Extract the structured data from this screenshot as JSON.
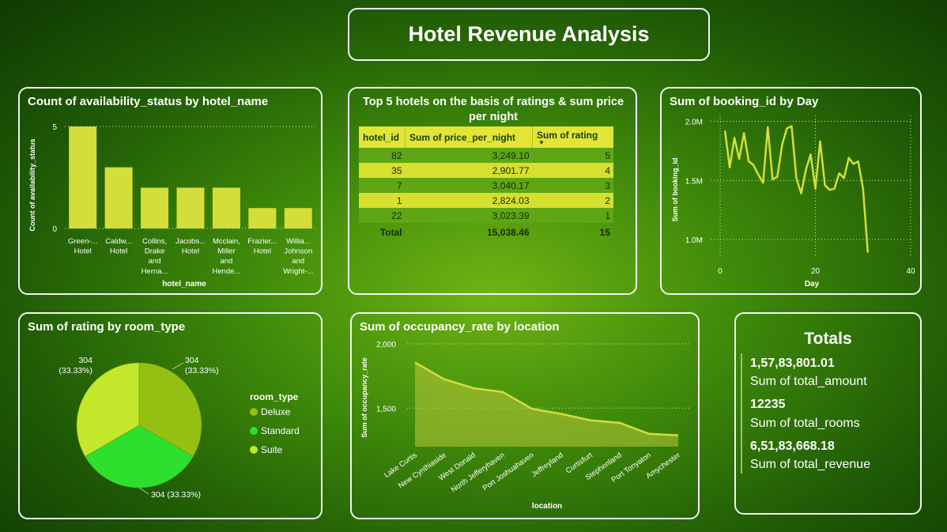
{
  "title": "Hotel Revenue Analysis",
  "panels": {
    "availability": {
      "title": "Count of availability_status by hotel_name"
    },
    "top5": {
      "title": "Top 5 hotels on the basis of ratings & sum price per night"
    },
    "booking": {
      "title": "Sum of booking_id by Day"
    },
    "rating": {
      "title": "Sum of rating by room_type"
    },
    "occupancy": {
      "title": "Sum of occupancy_rate by location"
    },
    "totals": {
      "title": "Totals"
    }
  },
  "chart_data": [
    {
      "type": "bar",
      "title": "Count of availability_status by hotel_name",
      "xlabel": "hotel_name",
      "ylabel": "Count of availability_status",
      "yticks": [
        "0",
        "5"
      ],
      "ylim": [
        0,
        5.7
      ],
      "categories": [
        [
          "Green-...",
          "Hotel"
        ],
        [
          "Caldw...",
          "Hotel"
        ],
        [
          "Collins,",
          "Drake",
          "and",
          "Herna..."
        ],
        [
          "Jacobs...",
          "Hotel"
        ],
        [
          "Mcclain,",
          "Miller",
          "and",
          "Hende..."
        ],
        [
          "Frazier...",
          "Hotel"
        ],
        [
          "Willia...",
          "Johnson",
          "and",
          "Wright-..."
        ]
      ],
      "values": [
        5,
        3,
        2,
        2,
        2,
        1,
        1
      ],
      "color": "#d4de3a"
    },
    {
      "type": "table",
      "title": "Top 5 hotels on the basis of ratings & sum price per night",
      "columns": [
        "hotel_id",
        "Sum of price_per_night",
        "Sum of rating"
      ],
      "rows": [
        [
          "82",
          "3,249.10",
          "5"
        ],
        [
          "35",
          "2,901.77",
          "4"
        ],
        [
          "7",
          "3,040.17",
          "3"
        ],
        [
          "1",
          "2,824.03",
          "2"
        ],
        [
          "22",
          "3,023.39",
          "1"
        ]
      ],
      "total": [
        "Total",
        "15,038.46",
        "15"
      ]
    },
    {
      "type": "line",
      "title": "Sum of booking_id by Day",
      "xlabel": "Day",
      "ylabel": "Sum of booking_id",
      "xticks": [
        "0",
        "20",
        "40"
      ],
      "yticks": [
        "1.0M",
        "1.5M",
        "2.0M"
      ],
      "xlim": [
        -2,
        40
      ],
      "ylim": [
        0.86,
        2.05
      ],
      "x": [
        1,
        2,
        3,
        4,
        5,
        6,
        7,
        8,
        9,
        10,
        11,
        12,
        13,
        14,
        15,
        16,
        17,
        18,
        19,
        20,
        21,
        22,
        23,
        24,
        25,
        26,
        27,
        28,
        29,
        30,
        31
      ],
      "y": [
        1.92,
        1.61,
        1.86,
        1.68,
        1.9,
        1.66,
        1.63,
        1.55,
        1.48,
        1.95,
        1.51,
        1.53,
        1.8,
        1.94,
        1.96,
        1.52,
        1.39,
        1.59,
        1.72,
        1.43,
        1.83,
        1.46,
        1.42,
        1.43,
        1.56,
        1.52,
        1.69,
        1.64,
        1.66,
        1.43,
        0.89
      ],
      "color": "#d4de3a"
    },
    {
      "type": "pie",
      "title": "Sum of rating by room_type",
      "legend_title": "room_type",
      "slices": [
        {
          "label": "Deluxe",
          "value": 304,
          "pct": "33.33%",
          "color": "#93c012"
        },
        {
          "label": "Standard",
          "value": 304,
          "pct": "33.33%",
          "color": "#2ee02e"
        },
        {
          "label": "Suite",
          "value": 304,
          "pct": "33.33%",
          "color": "#c3e72a"
        }
      ]
    },
    {
      "type": "area",
      "title": "Sum of occupancy_rate by location",
      "xlabel": "location",
      "ylabel": "Sum of occupancy_rate",
      "yticks": [
        "1,500",
        "2,000"
      ],
      "ylim": [
        1200,
        2000
      ],
      "categories": [
        "Lake Curtis",
        "New Cynthiaside",
        "West Donald",
        "North Jefferyhaven",
        "Port Joshuahaven",
        "Jeffreyland",
        "Curtisfurt",
        "Stephenland",
        "Port Tonyaton",
        "Amychester"
      ],
      "values": [
        1855,
        1725,
        1655,
        1625,
        1495,
        1455,
        1405,
        1385,
        1300,
        1288
      ],
      "color": "#d4de3a"
    }
  ],
  "totals": {
    "items": [
      {
        "value": "1,57,83,801.01",
        "label": "Sum of total_amount"
      },
      {
        "value": "12235",
        "label": "Sum of total_rooms"
      },
      {
        "value": "6,51,83,668.18",
        "label": "Sum of total_revenue"
      }
    ]
  }
}
